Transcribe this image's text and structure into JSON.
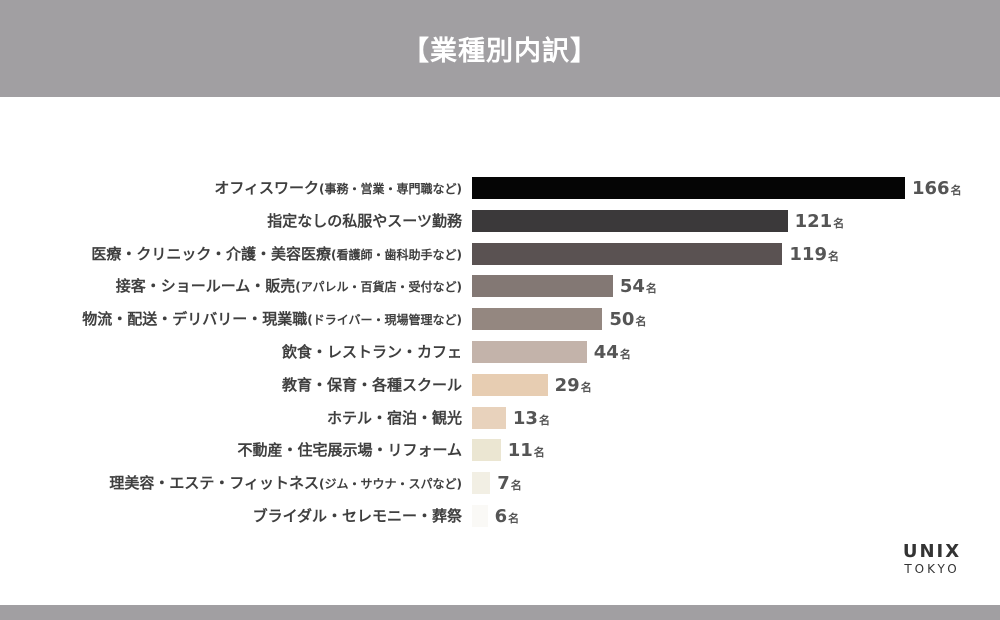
{
  "header": {
    "title": "【業種別内訳】"
  },
  "logo": {
    "main": "UNIX",
    "sub": "TOKYO"
  },
  "chart_data": {
    "type": "bar",
    "orientation": "horizontal",
    "title": "【業種別内訳】",
    "unit": "名",
    "categories": [
      {
        "main": "オフィスワーク",
        "sub": "(事務・営業・専門職など)"
      },
      {
        "main": "指定なしの私服やスーツ勤務",
        "sub": ""
      },
      {
        "main": "医療・クリニック・介護・美容医療",
        "sub": "(看護師・歯科助手など)"
      },
      {
        "main": "接客・ショールーム・販売",
        "sub": "(アパレル・百貨店・受付など)"
      },
      {
        "main": "物流・配送・デリバリー・現業職",
        "sub": "(ドライバー・現場管理など)"
      },
      {
        "main": "飲食・レストラン・カフェ",
        "sub": ""
      },
      {
        "main": "教育・保育・各種スクール",
        "sub": ""
      },
      {
        "main": "ホテル・宿泊・観光",
        "sub": ""
      },
      {
        "main": "不動産・住宅展示場・リフォーム",
        "sub": ""
      },
      {
        "main": "理美容・エステ・フィットネス",
        "sub": "(ジム・サウナ・スパなど)"
      },
      {
        "main": "ブライダル・セレモニー・葬祭",
        "sub": ""
      }
    ],
    "values": [
      166,
      121,
      119,
      54,
      50,
      44,
      29,
      13,
      11,
      7,
      6
    ],
    "colors": [
      "#050505",
      "#3b393a",
      "#5a5252",
      "#837874",
      "#948780",
      "#c3b3aa",
      "#e7cdb2",
      "#e8d2bc",
      "#ebe6d2",
      "#f2efe4",
      "#faf9f6"
    ],
    "xlim": [
      0,
      166
    ],
    "grid": false,
    "legend": "none"
  }
}
